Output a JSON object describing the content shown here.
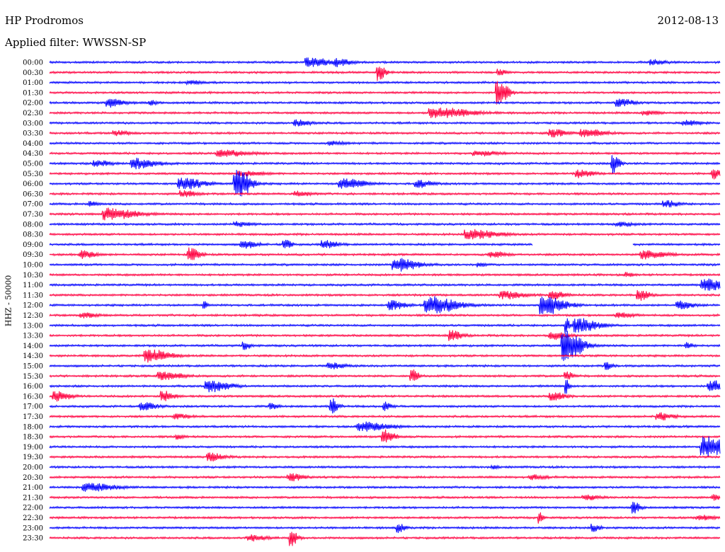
{
  "header": {
    "station": "HP Prodromos",
    "date": "2012-08-13",
    "filter": "Applied filter: WWSSN-SP"
  },
  "chart_data": {
    "type": "line",
    "chart_kind": "helicorder seismogram",
    "ylabel": "HHZ - 50000",
    "trace_colors": [
      "#0000ff",
      "#ff0040"
    ],
    "rows": [
      {
        "time": "00:00",
        "events": [
          {
            "at": 0.39,
            "amp": 6,
            "dur": 0.03
          },
          {
            "at": 0.43,
            "amp": 5,
            "dur": 0.02
          },
          {
            "at": 0.9,
            "amp": 3,
            "dur": 0.02
          }
        ]
      },
      {
        "time": "00:30",
        "events": [
          {
            "at": 0.49,
            "amp": 12,
            "dur": 0.01
          },
          {
            "at": 0.67,
            "amp": 4,
            "dur": 0.01
          }
        ]
      },
      {
        "time": "01:00",
        "events": [
          {
            "at": 0.21,
            "amp": 2,
            "dur": 0.02
          }
        ]
      },
      {
        "time": "01:30",
        "events": [
          {
            "at": 0.67,
            "amp": 18,
            "dur": 0.015
          }
        ]
      },
      {
        "time": "02:00",
        "events": [
          {
            "at": 0.09,
            "amp": 6,
            "dur": 0.02
          },
          {
            "at": 0.85,
            "amp": 5,
            "dur": 0.02
          },
          {
            "at": 0.15,
            "amp": 3,
            "dur": 0.01
          }
        ]
      },
      {
        "time": "02:30",
        "events": [
          {
            "at": 0.58,
            "amp": 7,
            "dur": 0.05
          },
          {
            "at": 0.89,
            "amp": 3,
            "dur": 0.02
          }
        ]
      },
      {
        "time": "03:00",
        "events": [
          {
            "at": 0.37,
            "amp": 4,
            "dur": 0.02
          },
          {
            "at": 0.95,
            "amp": 3,
            "dur": 0.02
          }
        ]
      },
      {
        "time": "03:30",
        "events": [
          {
            "at": 0.75,
            "amp": 5,
            "dur": 0.02
          },
          {
            "at": 0.8,
            "amp": 5,
            "dur": 0.03
          },
          {
            "at": 0.1,
            "amp": 3,
            "dur": 0.02
          }
        ]
      },
      {
        "time": "04:00",
        "events": [
          {
            "at": 0.42,
            "amp": 2,
            "dur": 0.02
          }
        ]
      },
      {
        "time": "04:30",
        "events": [
          {
            "at": 0.26,
            "amp": 4,
            "dur": 0.04
          },
          {
            "at": 0.64,
            "amp": 3,
            "dur": 0.03
          }
        ]
      },
      {
        "time": "05:00",
        "events": [
          {
            "at": 0.13,
            "amp": 7,
            "dur": 0.03
          },
          {
            "at": 0.84,
            "amp": 14,
            "dur": 0.01
          },
          {
            "at": 0.07,
            "amp": 4,
            "dur": 0.02
          }
        ]
      },
      {
        "time": "05:30",
        "events": [
          {
            "at": 0.29,
            "amp": 3,
            "dur": 0.03
          },
          {
            "at": 0.79,
            "amp": 5,
            "dur": 0.02
          },
          {
            "at": 0.99,
            "amp": 7,
            "dur": 0.01
          }
        ]
      },
      {
        "time": "06:00",
        "events": [
          {
            "at": 0.28,
            "amp": 22,
            "dur": 0.02
          },
          {
            "at": 0.2,
            "amp": 8,
            "dur": 0.03
          },
          {
            "at": 0.44,
            "amp": 7,
            "dur": 0.03
          },
          {
            "at": 0.55,
            "amp": 5,
            "dur": 0.02
          }
        ]
      },
      {
        "time": "06:30",
        "events": [
          {
            "at": 0.2,
            "amp": 4,
            "dur": 0.02
          },
          {
            "at": 0.37,
            "amp": 3,
            "dur": 0.02
          }
        ]
      },
      {
        "time": "07:00",
        "events": [
          {
            "at": 0.06,
            "amp": 4,
            "dur": 0.01
          },
          {
            "at": 0.92,
            "amp": 4,
            "dur": 0.02
          }
        ]
      },
      {
        "time": "07:30",
        "events": [
          {
            "at": 0.09,
            "amp": 8,
            "dur": 0.04
          }
        ]
      },
      {
        "time": "08:00",
        "events": [
          {
            "at": 0.28,
            "amp": 3,
            "dur": 0.02
          },
          {
            "at": 0.85,
            "amp": 3,
            "dur": 0.02
          }
        ]
      },
      {
        "time": "08:30",
        "events": [
          {
            "at": 0.63,
            "amp": 6,
            "dur": 0.04
          }
        ]
      },
      {
        "time": "09:00",
        "events": [
          {
            "at": 0.29,
            "amp": 5,
            "dur": 0.02
          },
          {
            "at": 0.35,
            "amp": 8,
            "dur": 0.01
          },
          {
            "at": 0.41,
            "amp": 5,
            "dur": 0.02
          }
        ],
        "gap": [
          0.72,
          0.87
        ]
      },
      {
        "time": "09:30",
        "events": [
          {
            "at": 0.05,
            "amp": 5,
            "dur": 0.02
          },
          {
            "at": 0.21,
            "amp": 9,
            "dur": 0.015
          },
          {
            "at": 0.89,
            "amp": 6,
            "dur": 0.03
          },
          {
            "at": 0.66,
            "amp": 4,
            "dur": 0.02
          }
        ]
      },
      {
        "time": "10:00",
        "events": [
          {
            "at": 0.52,
            "amp": 9,
            "dur": 0.03
          },
          {
            "at": 0.64,
            "amp": 3,
            "dur": 0.01
          }
        ]
      },
      {
        "time": "10:30",
        "events": [
          {
            "at": 0.86,
            "amp": 3,
            "dur": 0.01
          }
        ]
      },
      {
        "time": "11:00",
        "events": [
          {
            "at": 0.98,
            "amp": 8,
            "dur": 0.03
          }
        ]
      },
      {
        "time": "11:30",
        "events": [
          {
            "at": 0.68,
            "amp": 5,
            "dur": 0.03
          },
          {
            "at": 0.75,
            "amp": 5,
            "dur": 0.02
          },
          {
            "at": 0.88,
            "amp": 7,
            "dur": 0.015
          }
        ]
      },
      {
        "time": "12:00",
        "events": [
          {
            "at": 0.57,
            "amp": 12,
            "dur": 0.04
          },
          {
            "at": 0.74,
            "amp": 13,
            "dur": 0.03
          },
          {
            "at": 0.51,
            "amp": 6,
            "dur": 0.02
          },
          {
            "at": 0.94,
            "amp": 5,
            "dur": 0.02
          },
          {
            "at": 0.23,
            "amp": 5,
            "dur": 0.005
          }
        ]
      },
      {
        "time": "12:30",
        "events": [
          {
            "at": 0.05,
            "amp": 3,
            "dur": 0.02
          },
          {
            "at": 0.85,
            "amp": 3,
            "dur": 0.02
          }
        ]
      },
      {
        "time": "13:00",
        "events": [
          {
            "at": 0.79,
            "amp": 9,
            "dur": 0.03
          },
          {
            "at": 0.77,
            "amp": 12,
            "dur": 0.005
          }
        ]
      },
      {
        "time": "13:30",
        "events": [
          {
            "at": 0.6,
            "amp": 7,
            "dur": 0.015
          },
          {
            "at": 0.75,
            "amp": 5,
            "dur": 0.02
          }
        ]
      },
      {
        "time": "14:00",
        "events": [
          {
            "at": 0.77,
            "amp": 22,
            "dur": 0.025
          },
          {
            "at": 0.29,
            "amp": 5,
            "dur": 0.01
          },
          {
            "at": 0.95,
            "amp": 4,
            "dur": 0.01
          }
        ]
      },
      {
        "time": "14:30",
        "events": [
          {
            "at": 0.15,
            "amp": 9,
            "dur": 0.03
          }
        ]
      },
      {
        "time": "15:00",
        "events": [
          {
            "at": 0.42,
            "amp": 4,
            "dur": 0.02
          },
          {
            "at": 0.83,
            "amp": 5,
            "dur": 0.01
          }
        ]
      },
      {
        "time": "15:30",
        "events": [
          {
            "at": 0.17,
            "amp": 5,
            "dur": 0.03
          },
          {
            "at": 0.54,
            "amp": 9,
            "dur": 0.01
          },
          {
            "at": 0.77,
            "amp": 7,
            "dur": 0.01
          }
        ]
      },
      {
        "time": "16:00",
        "events": [
          {
            "at": 0.24,
            "amp": 8,
            "dur": 0.03
          },
          {
            "at": 0.99,
            "amp": 7,
            "dur": 0.03
          },
          {
            "at": 0.77,
            "amp": 12,
            "dur": 0.005
          }
        ]
      },
      {
        "time": "16:30",
        "events": [
          {
            "at": 0.01,
            "amp": 7,
            "dur": 0.02
          },
          {
            "at": 0.17,
            "amp": 7,
            "dur": 0.015
          },
          {
            "at": 0.75,
            "amp": 5,
            "dur": 0.02
          }
        ]
      },
      {
        "time": "17:00",
        "events": [
          {
            "at": 0.14,
            "amp": 5,
            "dur": 0.02
          },
          {
            "at": 0.42,
            "amp": 12,
            "dur": 0.01
          },
          {
            "at": 0.5,
            "amp": 6,
            "dur": 0.01
          },
          {
            "at": 0.33,
            "amp": 4,
            "dur": 0.01
          }
        ]
      },
      {
        "time": "17:30",
        "events": [
          {
            "at": 0.19,
            "amp": 3,
            "dur": 0.02
          },
          {
            "at": 0.91,
            "amp": 5,
            "dur": 0.02
          }
        ]
      },
      {
        "time": "18:00",
        "events": [
          {
            "at": 0.47,
            "amp": 6,
            "dur": 0.04
          }
        ]
      },
      {
        "time": "18:30",
        "events": [
          {
            "at": 0.5,
            "amp": 9,
            "dur": 0.015
          },
          {
            "at": 0.19,
            "amp": 3,
            "dur": 0.01
          }
        ]
      },
      {
        "time": "19:00",
        "events": [
          {
            "at": 0.98,
            "amp": 14,
            "dur": 0.03
          }
        ]
      },
      {
        "time": "19:30",
        "events": [
          {
            "at": 0.24,
            "amp": 5,
            "dur": 0.02
          }
        ]
      },
      {
        "time": "20:00",
        "events": [
          {
            "at": 0.66,
            "amp": 2,
            "dur": 0.01
          }
        ]
      },
      {
        "time": "20:30",
        "events": [
          {
            "at": 0.36,
            "amp": 5,
            "dur": 0.02
          },
          {
            "at": 0.72,
            "amp": 3,
            "dur": 0.02
          }
        ]
      },
      {
        "time": "21:00",
        "events": [
          {
            "at": 0.06,
            "amp": 5,
            "dur": 0.04
          }
        ]
      },
      {
        "time": "21:30",
        "events": [
          {
            "at": 0.8,
            "amp": 3,
            "dur": 0.02
          },
          {
            "at": 0.99,
            "amp": 4,
            "dur": 0.01
          }
        ]
      },
      {
        "time": "22:00",
        "events": [
          {
            "at": 0.87,
            "amp": 9,
            "dur": 0.01
          }
        ]
      },
      {
        "time": "22:30",
        "events": [
          {
            "at": 0.73,
            "amp": 10,
            "dur": 0.005
          },
          {
            "at": 0.97,
            "amp": 3,
            "dur": 0.02
          }
        ]
      },
      {
        "time": "23:00",
        "events": [
          {
            "at": 0.52,
            "amp": 6,
            "dur": 0.01
          },
          {
            "at": 0.81,
            "amp": 5,
            "dur": 0.01
          }
        ]
      },
      {
        "time": "23:30",
        "events": [
          {
            "at": 0.36,
            "amp": 11,
            "dur": 0.01
          },
          {
            "at": 0.3,
            "amp": 4,
            "dur": 0.02
          }
        ]
      }
    ]
  }
}
